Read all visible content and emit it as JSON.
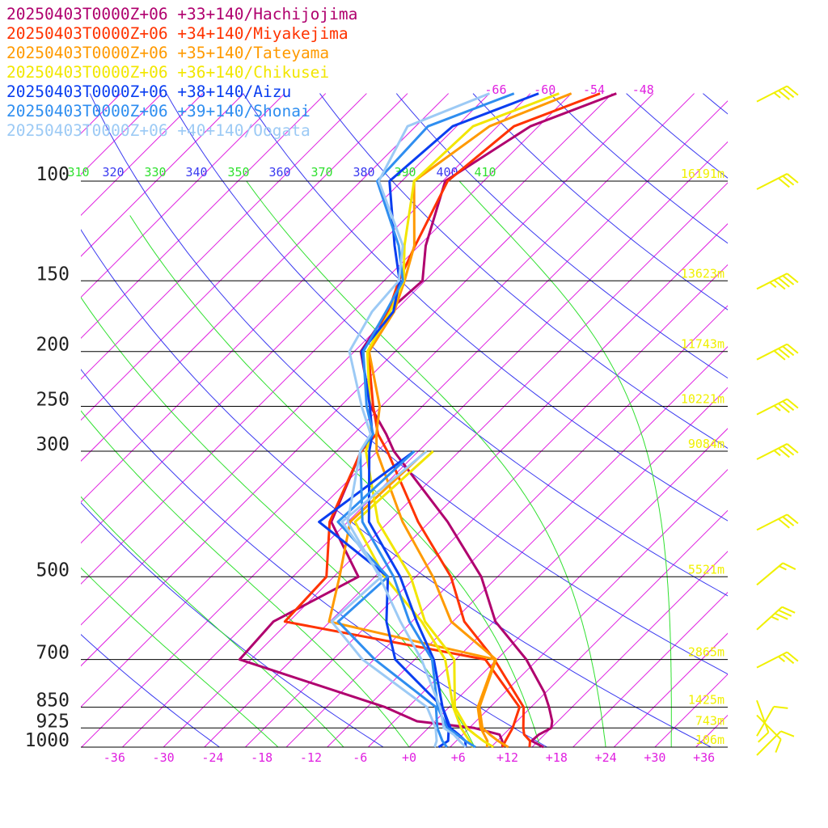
{
  "legend": [
    {
      "label": "20250403T0000Z+06 +33+140/Hachijojima",
      "color": "#b0006e"
    },
    {
      "label": "20250403T0000Z+06 +34+140/Miyakejima",
      "color": "#ff3300"
    },
    {
      "label": "20250403T0000Z+06 +35+140/Tateyama",
      "color": "#ff9a00"
    },
    {
      "label": "20250403T0000Z+06 +36+140/Chikusei",
      "color": "#f2e600"
    },
    {
      "label": "20250403T0000Z+06 +38+140/Aizu",
      "color": "#0a3ef0"
    },
    {
      "label": "20250403T0000Z+06 +39+140/Shonai",
      "color": "#2f8ef0"
    },
    {
      "label": "20250403T0000Z+06 +40+140/Oogata",
      "color": "#9ccaf5"
    }
  ],
  "colors": {
    "isobar": "#000000",
    "isotherm": "#e020e0",
    "dry_adiabat": "#3a3af0",
    "moist_adiabat": "#30e030",
    "height_label": "#f0f000",
    "wind_barb": "#f0f000"
  },
  "chart_data": {
    "type": "line",
    "pressure_levels": [
      {
        "p": 100,
        "label": "100",
        "height": "16191m"
      },
      {
        "p": 150,
        "label": "150",
        "height": "13623m"
      },
      {
        "p": 200,
        "label": "200",
        "height": "11743m"
      },
      {
        "p": 250,
        "label": "250",
        "height": "10221m"
      },
      {
        "p": 300,
        "label": "300",
        "height": "9084m"
      },
      {
        "p": 500,
        "label": "500",
        "height": "5521m"
      },
      {
        "p": 700,
        "label": "700",
        "height": "2865m"
      },
      {
        "p": 850,
        "label": "850",
        "height": "1425m"
      },
      {
        "p": 925,
        "label": "925",
        "height": "743m"
      },
      {
        "p": 1000,
        "label": "1000",
        "height": "106m"
      }
    ],
    "x_ticks": [
      "-36",
      "-30",
      "-24",
      "-18",
      "-12",
      "-6",
      "+0",
      "+6",
      "+12",
      "+18",
      "+24",
      "+30",
      "+36"
    ],
    "isotherm_labels": [
      "-66",
      "-60",
      "-54",
      "-48"
    ],
    "theta_labels": [
      "310",
      "320",
      "330",
      "340",
      "350",
      "360",
      "370",
      "380",
      "390",
      "400",
      "410"
    ],
    "xlim": [
      -40,
      40
    ],
    "ylim": [
      1000,
      100
    ],
    "series": [
      {
        "name": "20250403T0000Z+06 +33+140/Hachijojima",
        "color": "#b0006e",
        "temperature": [
          [
            1000,
            16.4
          ],
          [
            975,
            14.2
          ],
          [
            950,
            14.3
          ],
          [
            925,
            15.0
          ],
          [
            900,
            14.3
          ],
          [
            850,
            12.2
          ],
          [
            800,
            9.8
          ],
          [
            700,
            3.6
          ],
          [
            600,
            -4.8
          ],
          [
            500,
            -12.0
          ],
          [
            400,
            -22.8
          ],
          [
            300,
            -38.0
          ],
          [
            280,
            -41.0
          ],
          [
            250,
            -46.3
          ],
          [
            200,
            -54.2
          ],
          [
            170,
            -55.8
          ],
          [
            150,
            -55.3
          ],
          [
            130,
            -59.2
          ],
          [
            100,
            -64.7
          ],
          [
            80,
            -61.0
          ],
          [
            70,
            -54.5
          ]
        ],
        "dewpoint": [
          [
            1000,
            11.4
          ],
          [
            975,
            10.6
          ],
          [
            950,
            9.5
          ],
          [
            925,
            5.6
          ],
          [
            900,
            -2.2
          ],
          [
            850,
            -7.8
          ],
          [
            700,
            -31.4
          ],
          [
            600,
            -31.9
          ],
          [
            500,
            -27.0
          ],
          [
            400,
            -37.0
          ],
          [
            300,
            -42.0
          ],
          [
            280,
            -42.8
          ]
        ]
      },
      {
        "name": "20250403T0000Z+06 +34+140/Miyakejima",
        "color": "#ff3300",
        "temperature": [
          [
            1000,
            14.7
          ],
          [
            975,
            14.0
          ],
          [
            950,
            12.5
          ],
          [
            925,
            11.6
          ],
          [
            850,
            9.1
          ],
          [
            700,
            -0.3
          ],
          [
            600,
            -8.6
          ],
          [
            500,
            -15.7
          ],
          [
            400,
            -26.4
          ],
          [
            300,
            -38.8
          ],
          [
            280,
            -42.0
          ],
          [
            250,
            -46.0
          ],
          [
            200,
            -53.3
          ],
          [
            170,
            -55.7
          ],
          [
            150,
            -58.2
          ],
          [
            130,
            -60.5
          ],
          [
            100,
            -64.4
          ],
          [
            80,
            -63.0
          ],
          [
            70,
            -56.5
          ]
        ],
        "dewpoint": [
          [
            1000,
            11.4
          ],
          [
            975,
            11.0
          ],
          [
            925,
            10.3
          ],
          [
            850,
            8.6
          ],
          [
            700,
            -1.4
          ],
          [
            600,
            -30.5
          ],
          [
            500,
            -30.9
          ],
          [
            400,
            -37.2
          ],
          [
            300,
            -42.0
          ],
          [
            280,
            -42.2
          ]
        ]
      },
      {
        "name": "20250403T0000Z+06 +35+140/Tateyama",
        "color": "#ff9a00",
        "temperature": [
          [
            1000,
            12.1
          ],
          [
            975,
            10.1
          ],
          [
            950,
            8.3
          ],
          [
            925,
            6.6
          ],
          [
            850,
            3.7
          ],
          [
            700,
            -0.1
          ],
          [
            600,
            -10.2
          ],
          [
            500,
            -17.9
          ],
          [
            400,
            -28.3
          ],
          [
            300,
            -40.1
          ],
          [
            280,
            -42.2
          ],
          [
            250,
            -45.2
          ],
          [
            200,
            -53.2
          ],
          [
            170,
            -55.0
          ],
          [
            150,
            -57.5
          ],
          [
            130,
            -60.6
          ],
          [
            100,
            -68.5
          ],
          [
            80,
            -66.0
          ],
          [
            70,
            -60.0
          ]
        ],
        "dewpoint": [
          [
            1000,
            9.5
          ],
          [
            975,
            8.8
          ],
          [
            925,
            6.4
          ],
          [
            850,
            3.5
          ],
          [
            700,
            -0.2
          ],
          [
            600,
            -25.1
          ],
          [
            500,
            -29.3
          ],
          [
            400,
            -34.7
          ],
          [
            300,
            -34.1
          ]
        ]
      },
      {
        "name": "20250403T0000Z+06 +36+140/Chikusei",
        "color": "#f2e600",
        "temperature": [
          [
            1000,
            10.3
          ],
          [
            975,
            8.3
          ],
          [
            950,
            6.5
          ],
          [
            925,
            4.7
          ],
          [
            850,
            0.7
          ],
          [
            700,
            -5.2
          ],
          [
            600,
            -13.4
          ],
          [
            500,
            -20.6
          ],
          [
            400,
            -31.3
          ],
          [
            300,
            -41.4
          ],
          [
            280,
            -42.8
          ],
          [
            250,
            -46.4
          ],
          [
            200,
            -53.4
          ],
          [
            170,
            -55.5
          ],
          [
            150,
            -57.6
          ],
          [
            130,
            -61.8
          ],
          [
            100,
            -68.5
          ],
          [
            80,
            -68.0
          ],
          [
            70,
            -61.5
          ]
        ],
        "dewpoint": [
          [
            1000,
            7.8
          ],
          [
            975,
            6.6
          ],
          [
            925,
            4.0
          ],
          [
            850,
            0.5
          ],
          [
            700,
            -6.3
          ],
          [
            600,
            -13.8
          ],
          [
            500,
            -23.8
          ],
          [
            400,
            -34.1
          ],
          [
            300,
            -33.2
          ]
        ]
      },
      {
        "name": "20250403T0000Z+06 +38+140/Aizu",
        "color": "#0a3ef0",
        "temperature": [
          [
            1000,
            6.9
          ],
          [
            975,
            6.1
          ],
          [
            950,
            4.5
          ],
          [
            925,
            2.7
          ],
          [
            850,
            -0.8
          ],
          [
            700,
            -7.7
          ],
          [
            600,
            -14.4
          ],
          [
            500,
            -21.9
          ],
          [
            400,
            -32.4
          ],
          [
            300,
            -41.0
          ],
          [
            280,
            -42.7
          ],
          [
            250,
            -46.4
          ],
          [
            200,
            -54.1
          ],
          [
            170,
            -55.1
          ],
          [
            150,
            -58.1
          ],
          [
            130,
            -63.0
          ],
          [
            100,
            -71.5
          ],
          [
            80,
            -70.5
          ],
          [
            70,
            -64.0
          ]
        ],
        "dewpoint": [
          [
            1000,
            3.6
          ],
          [
            975,
            4.0
          ],
          [
            925,
            2.5
          ],
          [
            850,
            -0.8
          ],
          [
            700,
            -12.4
          ],
          [
            600,
            -18.1
          ],
          [
            500,
            -23.4
          ],
          [
            400,
            -38.5
          ],
          [
            300,
            -35.5
          ]
        ]
      },
      {
        "name": "20250403T0000Z+06 +39+140/Shonai",
        "color": "#2f8ef0",
        "temperature": [
          [
            1000,
            8.1
          ],
          [
            975,
            6.1
          ],
          [
            950,
            4.3
          ],
          [
            925,
            2.3
          ],
          [
            850,
            -1.4
          ],
          [
            700,
            -7.9
          ],
          [
            600,
            -15.3
          ],
          [
            500,
            -22.7
          ],
          [
            400,
            -33.2
          ],
          [
            300,
            -42.1
          ],
          [
            280,
            -42.6
          ],
          [
            250,
            -46.8
          ],
          [
            200,
            -53.9
          ],
          [
            170,
            -56.0
          ],
          [
            150,
            -57.7
          ],
          [
            130,
            -62.5
          ],
          [
            100,
            -73.0
          ],
          [
            80,
            -73.5
          ],
          [
            70,
            -67.0
          ]
        ],
        "dewpoint": [
          [
            1000,
            4.6
          ],
          [
            975,
            3.3
          ],
          [
            925,
            1.1
          ],
          [
            850,
            -1.6
          ],
          [
            700,
            -14.9
          ],
          [
            600,
            -24.0
          ],
          [
            500,
            -23.4
          ],
          [
            400,
            -36.2
          ],
          [
            300,
            -35.5
          ]
        ]
      },
      {
        "name": "20250403T0000Z+06 +40+140/Oogata",
        "color": "#9ccaf5",
        "temperature": [
          [
            1000,
            6.9
          ],
          [
            975,
            5.4
          ],
          [
            950,
            3.9
          ],
          [
            925,
            1.9
          ],
          [
            850,
            -1.1
          ],
          [
            700,
            -9.2
          ],
          [
            600,
            -16.4
          ],
          [
            500,
            -24.4
          ],
          [
            400,
            -35.0
          ],
          [
            300,
            -42.1
          ],
          [
            280,
            -42.9
          ],
          [
            250,
            -47.4
          ],
          [
            200,
            -55.6
          ],
          [
            170,
            -57.7
          ],
          [
            150,
            -58.2
          ],
          [
            130,
            -62.0
          ],
          [
            100,
            -72.8
          ],
          [
            80,
            -76.0
          ],
          [
            70,
            -70.0
          ]
        ],
        "dewpoint": [
          [
            1000,
            3.1
          ],
          [
            975,
            2.6
          ],
          [
            925,
            0.9
          ],
          [
            850,
            -2.7
          ],
          [
            700,
            -16.4
          ],
          [
            600,
            -24.8
          ],
          [
            500,
            -24.2
          ],
          [
            400,
            -35.7
          ],
          [
            300,
            -34.0
          ]
        ]
      }
    ]
  },
  "wind_barbs": [
    {
      "p": 70,
      "speed_kt": 35,
      "dir_deg": 243
    },
    {
      "p": 100,
      "speed_kt": 30,
      "dir_deg": 243
    },
    {
      "p": 150,
      "speed_kt": 45,
      "dir_deg": 243
    },
    {
      "p": 200,
      "speed_kt": 40,
      "dir_deg": 243
    },
    {
      "p": 250,
      "speed_kt": 35,
      "dir_deg": 243
    },
    {
      "p": 300,
      "speed_kt": 35,
      "dir_deg": 243
    },
    {
      "p": 400,
      "speed_kt": 30,
      "dir_deg": 243
    },
    {
      "p": 500,
      "speed_kt": 15,
      "dir_deg": 230
    },
    {
      "p": 600,
      "speed_kt": 35,
      "dir_deg": 228
    },
    {
      "p": 700,
      "speed_kt": 25,
      "dir_deg": 243
    },
    {
      "p": 800,
      "speed_kt": 10,
      "dir_deg": 340
    },
    {
      "p": 850,
      "speed_kt": 10,
      "dir_deg": 315
    },
    {
      "p": 925,
      "speed_kt": 10,
      "dir_deg": 210
    },
    {
      "p": 1000,
      "speed_kt": 10,
      "dir_deg": 225
    }
  ]
}
